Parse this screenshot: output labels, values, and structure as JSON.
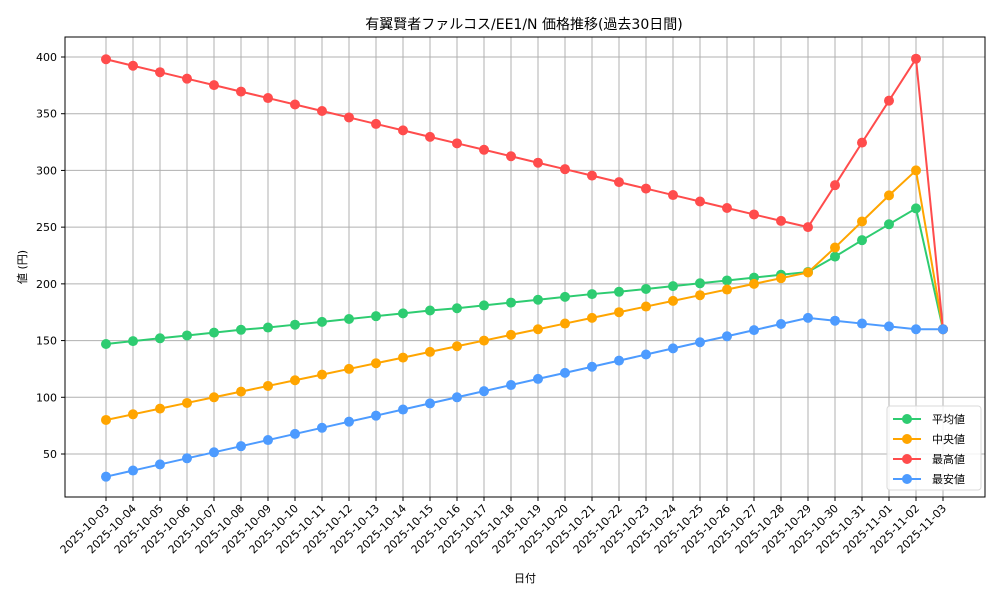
{
  "chart_data": {
    "type": "line",
    "title": "有翼賢者ファルコス/EE1/N 価格推移(過去30日間)",
    "xlabel": "日付",
    "ylabel": "値 (円)",
    "ylim": [
      11,
      416
    ],
    "yticks": [
      50,
      100,
      150,
      200,
      250,
      300,
      350,
      400
    ],
    "grid": true,
    "legend_position": "lower right",
    "categories": [
      "2025-10-03",
      "2025-10-04",
      "2025-10-05",
      "2025-10-06",
      "2025-10-07",
      "2025-10-08",
      "2025-10-09",
      "2025-10-10",
      "2025-10-11",
      "2025-10-12",
      "2025-10-13",
      "2025-10-14",
      "2025-10-15",
      "2025-10-16",
      "2025-10-17",
      "2025-10-18",
      "2025-10-19",
      "2025-10-20",
      "2025-10-21",
      "2025-10-22",
      "2025-10-23",
      "2025-10-24",
      "2025-10-25",
      "2025-10-26",
      "2025-10-27",
      "2025-10-28",
      "2025-10-29",
      "2025-10-30",
      "2025-10-31",
      "2025-11-01",
      "2025-11-02",
      "2025-11-03"
    ],
    "series": [
      {
        "name": "平均値",
        "color": "#2ecc71",
        "values": [
          147,
          149.5,
          152,
          154.5,
          157,
          159.5,
          161.5,
          164,
          166.5,
          169,
          171.5,
          174,
          176.5,
          178.5,
          181,
          183.5,
          186,
          188.5,
          191,
          193,
          195.5,
          198,
          200.5,
          203,
          205.5,
          208,
          210.5,
          224,
          238.5,
          252.5,
          266.5,
          160
        ]
      },
      {
        "name": "中央値",
        "color": "#ffa500",
        "values": [
          80,
          85,
          90,
          95,
          100,
          105,
          110,
          115,
          120,
          125,
          130,
          135,
          140,
          145,
          150,
          155,
          160,
          165,
          170,
          175,
          180,
          185,
          190,
          195,
          200,
          205,
          210,
          232,
          255,
          278,
          300,
          160
        ]
      },
      {
        "name": "最高値",
        "color": "#ff4c4c",
        "values": [
          398,
          392.3,
          386.6,
          380.9,
          375.2,
          369.5,
          363.8,
          358.1,
          352.4,
          346.7,
          341,
          335.3,
          329.6,
          323.9,
          318.2,
          312.5,
          306.8,
          301.1,
          295.4,
          289.7,
          284,
          278.3,
          272.6,
          266.9,
          261.2,
          255.5,
          250,
          287,
          324.5,
          361.5,
          398.5,
          160
        ]
      },
      {
        "name": "最安値",
        "color": "#4d9bff",
        "values": [
          30,
          35.4,
          40.8,
          46.2,
          51.5,
          56.9,
          62.3,
          67.7,
          73.1,
          78.5,
          83.8,
          89.2,
          94.6,
          100,
          105.4,
          110.8,
          116.2,
          121.5,
          126.9,
          132.3,
          137.7,
          143.1,
          148.5,
          153.8,
          159.2,
          164.6,
          170,
          167.5,
          165,
          162.5,
          160,
          160
        ]
      }
    ]
  }
}
